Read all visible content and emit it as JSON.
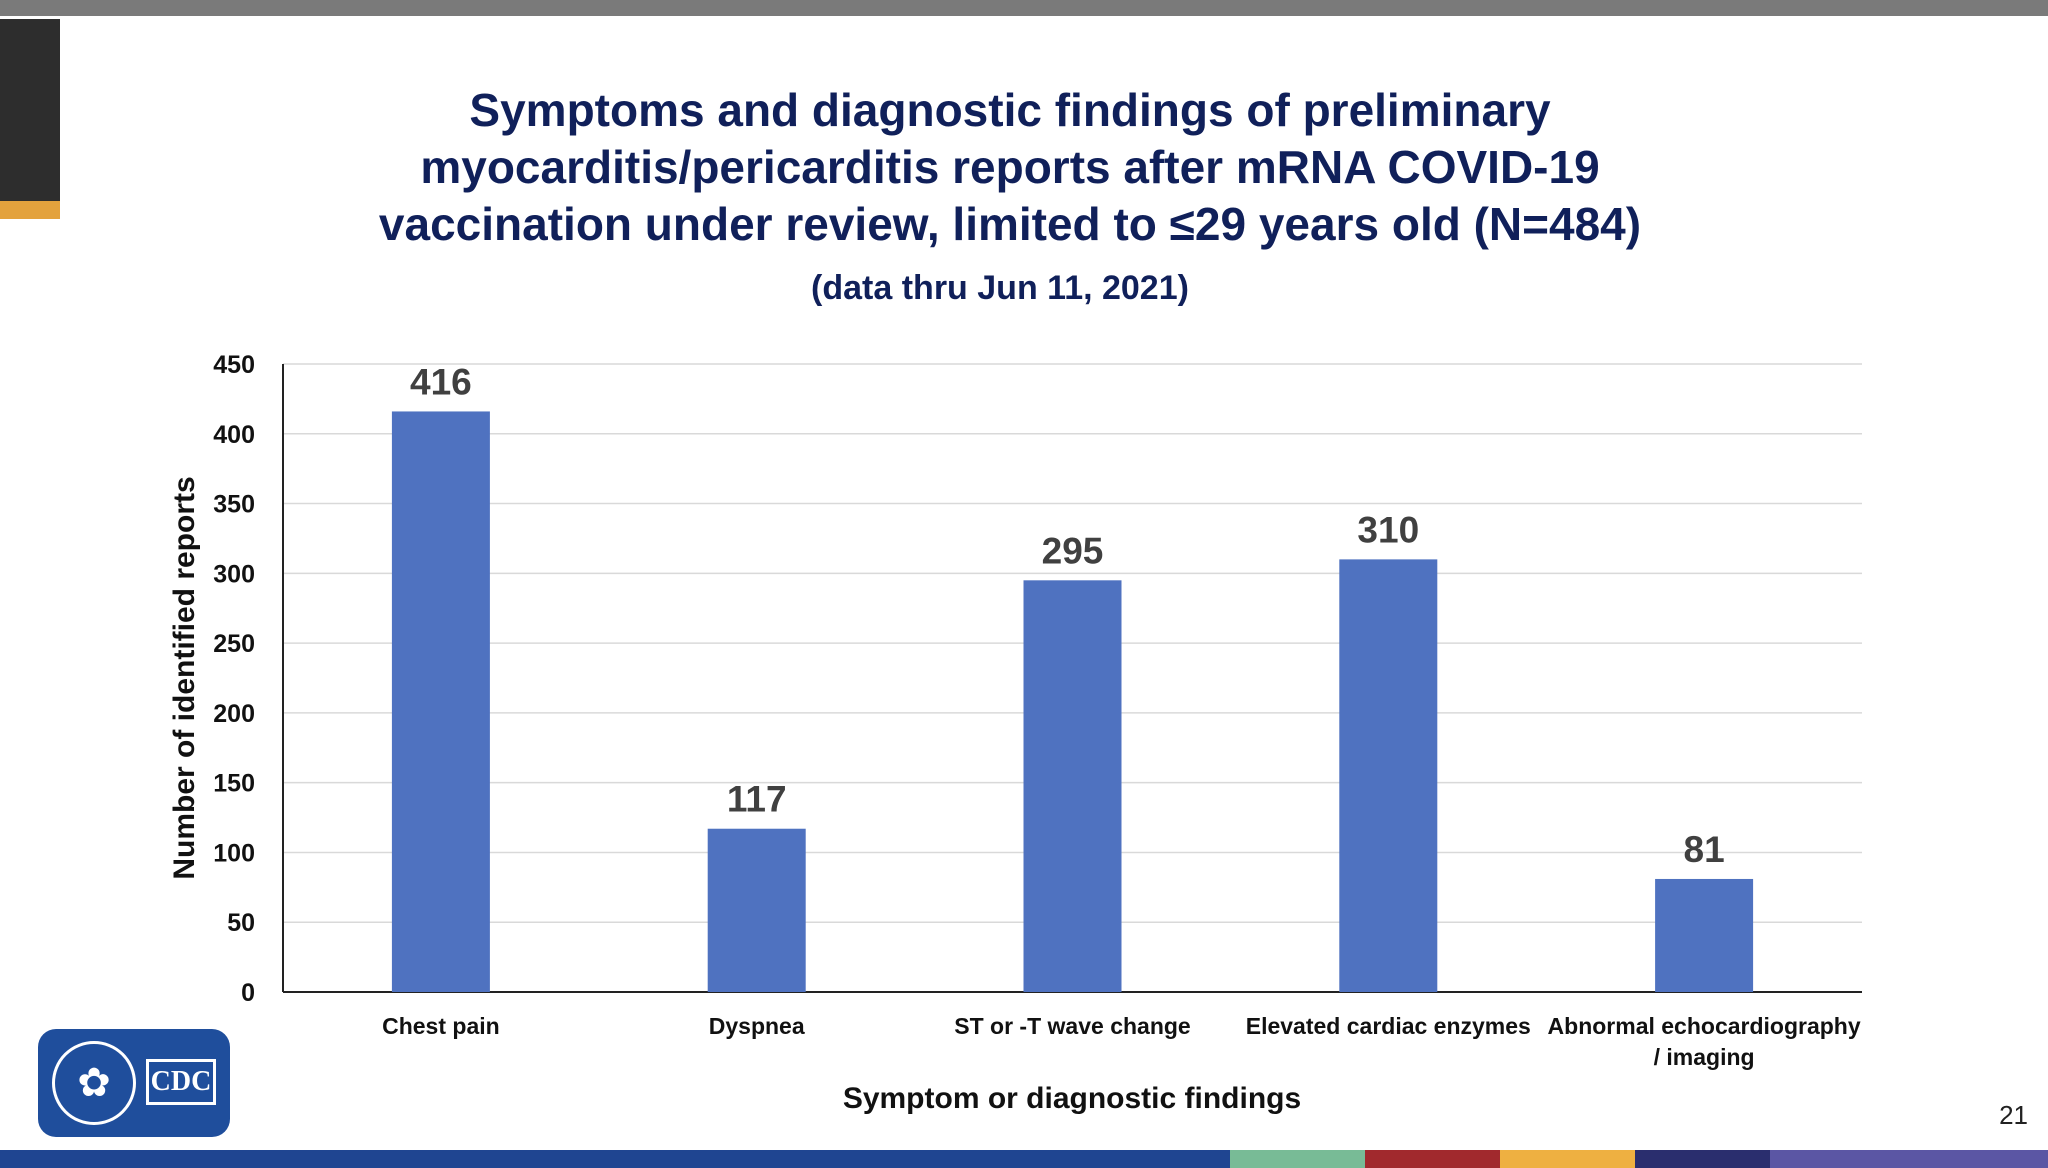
{
  "slide": {
    "title": "Symptoms and diagnostic findings of preliminary myocarditis/pericarditis reports after mRNA COVID-19 vaccination under review, limited to ≤29 years old (N=484)",
    "subtitle": "(data thru Jun 11, 2021)",
    "page_number": "21",
    "logo_text": "CDC"
  },
  "colors": {
    "title": "#10205a",
    "bar": "#4f72c0",
    "top_bar": "#7a7a7a",
    "accent": "#e3a23d",
    "bottom_bar": [
      "#1f4591",
      "#78bb96",
      "#a1292d",
      "#eeb041",
      "#2a2e6e",
      "#5b56a4"
    ]
  },
  "chart_data": {
    "type": "bar",
    "categories": [
      "Chest pain",
      "Dyspnea",
      "ST or -T wave change",
      "Elevated cardiac enzymes",
      "Abnormal echocardiography / imaging"
    ],
    "values": [
      416,
      117,
      295,
      310,
      81
    ],
    "data_labels": [
      "416",
      "117",
      "295",
      "310",
      "81"
    ],
    "xlabel": "Symptom or diagnostic findings",
    "ylabel": "Number of identified reports",
    "ylim": [
      0,
      450
    ],
    "yticks": [
      0,
      50,
      100,
      150,
      200,
      250,
      300,
      350,
      400,
      450
    ],
    "grid": true,
    "legend": "none"
  }
}
